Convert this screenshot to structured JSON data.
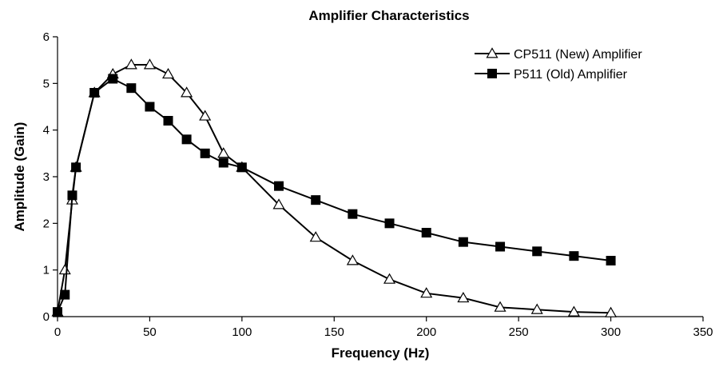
{
  "chart_data": {
    "type": "line",
    "title": "Amplifier Characteristics",
    "xlabel": "Frequency (Hz)",
    "ylabel": "Amplitude (Gain)",
    "xlim": [
      0,
      350
    ],
    "ylim": [
      0,
      6
    ],
    "xticks": [
      0,
      50,
      100,
      150,
      200,
      250,
      300,
      350
    ],
    "yticks": [
      0,
      1,
      2,
      3,
      4,
      5,
      6
    ],
    "grid": false,
    "legend_position": "top-right",
    "series": [
      {
        "name": "CP511 (New) Amplifier",
        "marker": "open-triangle",
        "x": [
          0,
          4,
          8,
          10,
          20,
          30,
          40,
          50,
          60,
          70,
          80,
          90,
          100,
          120,
          140,
          160,
          180,
          200,
          220,
          240,
          260,
          280,
          300
        ],
        "y": [
          0.1,
          1.0,
          2.5,
          3.2,
          4.8,
          5.2,
          5.4,
          5.4,
          5.2,
          4.8,
          4.3,
          3.5,
          3.2,
          2.4,
          1.7,
          1.2,
          0.8,
          0.5,
          0.4,
          0.2,
          0.15,
          0.1,
          0.08
        ]
      },
      {
        "name": "P511 (Old) Amplifier",
        "marker": "filled-square",
        "x": [
          0,
          4,
          8,
          10,
          20,
          30,
          40,
          50,
          60,
          70,
          80,
          90,
          100,
          120,
          140,
          160,
          180,
          200,
          220,
          240,
          260,
          280,
          300
        ],
        "y": [
          0.1,
          0.47,
          2.6,
          3.2,
          4.8,
          5.1,
          4.9,
          4.5,
          4.2,
          3.8,
          3.5,
          3.3,
          3.2,
          2.8,
          2.5,
          2.2,
          2.0,
          1.8,
          1.6,
          1.5,
          1.4,
          1.3,
          1.2
        ]
      }
    ]
  }
}
